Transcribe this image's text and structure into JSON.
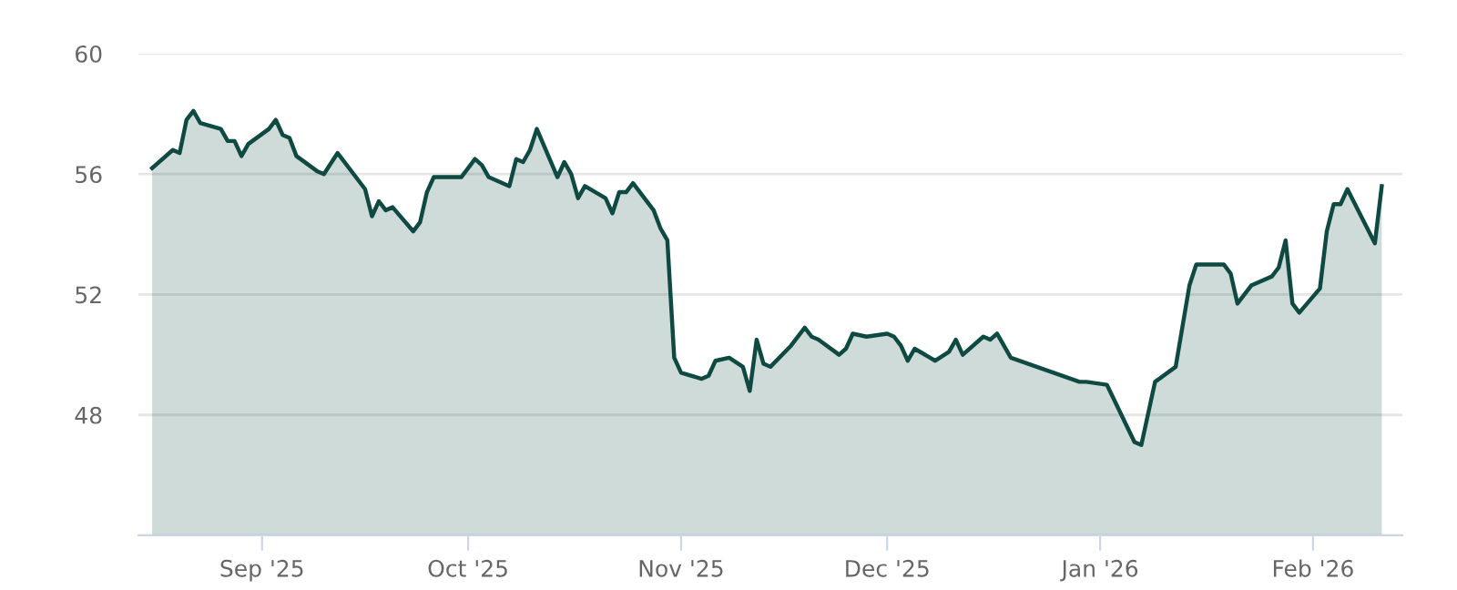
{
  "chart_data": {
    "type": "area",
    "grid": "y",
    "legend": false,
    "marker": "none",
    "line_style": "solid",
    "xlim": [
      "2025-08-14",
      "2026-02-14"
    ],
    "ylim": [
      44,
      60
    ],
    "yticks": [
      {
        "value": 44,
        "label": null
      },
      48,
      52,
      56,
      60
    ],
    "xticks": [
      {
        "value": "2025-09-01",
        "label": "Sep '25"
      },
      {
        "value": "2025-10-01",
        "label": "Oct '25"
      },
      {
        "value": "2025-11-01",
        "label": "Nov '25"
      },
      {
        "value": "2025-12-01",
        "label": "Dec '25"
      },
      {
        "value": "2026-01-01",
        "label": "Jan '26"
      },
      {
        "value": "2026-02-01",
        "label": "Feb '26"
      }
    ],
    "series": [
      {
        "color": "#0f4a42",
        "x": [
          "2025-08-16",
          "2025-08-19",
          "2025-08-20",
          "2025-08-21",
          "2025-08-22",
          "2025-08-23",
          "2025-08-26",
          "2025-08-27",
          "2025-08-28",
          "2025-08-29",
          "2025-08-30",
          "2025-09-02",
          "2025-09-03",
          "2025-09-04",
          "2025-09-05",
          "2025-09-06",
          "2025-09-09",
          "2025-09-10",
          "2025-09-12",
          "2025-09-16",
          "2025-09-17",
          "2025-09-18",
          "2025-09-19",
          "2025-09-20",
          "2025-09-23",
          "2025-09-24",
          "2025-09-25",
          "2025-09-26",
          "2025-09-30",
          "2025-10-02",
          "2025-10-03",
          "2025-10-04",
          "2025-10-07",
          "2025-10-08",
          "2025-10-09",
          "2025-10-10",
          "2025-10-11",
          "2025-10-14",
          "2025-10-15",
          "2025-10-16",
          "2025-10-17",
          "2025-10-18",
          "2025-10-21",
          "2025-10-22",
          "2025-10-23",
          "2025-10-24",
          "2025-10-25",
          "2025-10-28",
          "2025-10-29",
          "2025-10-30",
          "2025-10-31",
          "2025-11-01",
          "2025-11-04",
          "2025-11-05",
          "2025-11-06",
          "2025-11-08",
          "2025-11-10",
          "2025-11-11",
          "2025-11-12",
          "2025-11-13",
          "2025-11-14",
          "2025-11-17",
          "2025-11-19",
          "2025-11-20",
          "2025-11-21",
          "2025-11-24",
          "2025-11-25",
          "2025-11-26",
          "2025-11-28",
          "2025-12-01",
          "2025-12-02",
          "2025-12-03",
          "2025-12-04",
          "2025-12-05",
          "2025-12-08",
          "2025-12-10",
          "2025-12-11",
          "2025-12-12",
          "2025-12-15",
          "2025-12-16",
          "2025-12-17",
          "2025-12-19",
          "2025-12-29",
          "2025-12-30",
          "2026-01-02",
          "2026-01-06",
          "2026-01-07",
          "2026-01-09",
          "2026-01-12",
          "2026-01-14",
          "2026-01-15",
          "2026-01-19",
          "2026-01-20",
          "2026-01-21",
          "2026-01-23",
          "2026-01-26",
          "2026-01-27",
          "2026-01-28",
          "2026-01-29",
          "2026-01-30",
          "2026-02-02",
          "2026-02-03",
          "2026-02-04",
          "2026-02-05",
          "2026-02-06",
          "2026-02-10",
          "2026-02-11"
        ],
        "values": [
          56.2,
          56.8,
          56.7,
          57.8,
          58.1,
          57.7,
          57.5,
          57.1,
          57.1,
          56.6,
          57.0,
          57.5,
          57.8,
          57.3,
          57.2,
          56.6,
          56.1,
          56.0,
          56.7,
          55.5,
          54.6,
          55.1,
          54.8,
          54.9,
          54.1,
          54.4,
          55.4,
          55.9,
          55.9,
          56.5,
          56.3,
          55.9,
          55.6,
          56.5,
          56.4,
          56.8,
          57.5,
          55.9,
          56.4,
          56.0,
          55.2,
          55.6,
          55.2,
          54.7,
          55.4,
          55.4,
          55.7,
          54.8,
          54.2,
          53.8,
          49.9,
          49.4,
          49.2,
          49.3,
          49.8,
          49.9,
          49.6,
          48.8,
          50.5,
          49.7,
          49.6,
          50.3,
          50.9,
          50.6,
          50.5,
          50.0,
          50.2,
          50.7,
          50.6,
          50.7,
          50.6,
          50.3,
          49.8,
          50.2,
          49.8,
          50.1,
          50.5,
          50.0,
          50.6,
          50.5,
          50.7,
          49.9,
          49.1,
          49.1,
          49.0,
          47.1,
          47.0,
          49.1,
          49.6,
          52.3,
          53.0,
          53.0,
          52.7,
          51.7,
          52.3,
          52.6,
          52.9,
          53.8,
          51.7,
          51.4,
          52.2,
          54.1,
          55.0,
          55.0,
          55.5,
          53.7,
          55.6
        ]
      }
    ]
  }
}
